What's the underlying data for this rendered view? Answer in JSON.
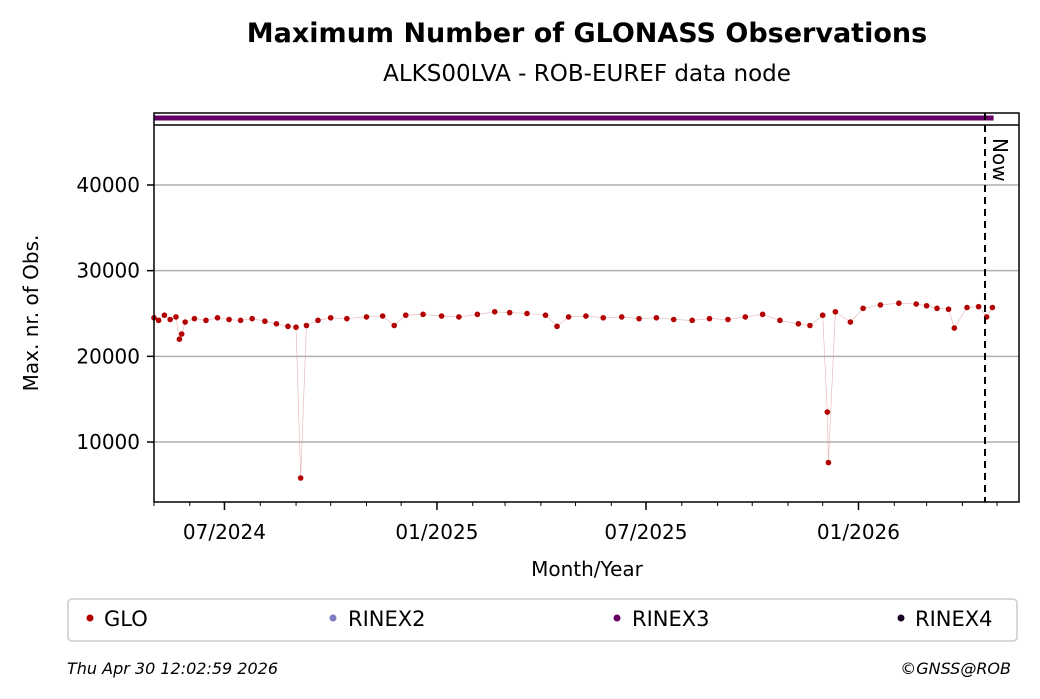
{
  "chart_data": {
    "type": "scatter",
    "title": "Maximum Number of GLONASS Observations",
    "subtitle": "ALKS00LVA - ROB-EUREF data node",
    "xlabel": "Month/Year",
    "ylabel": "Max. nr. of Obs.",
    "x_range": [
      "2024-05-01",
      "2026-05-20"
    ],
    "ylim": [
      3000,
      47000
    ],
    "x_ticks": [
      {
        "date": "2024-07-01",
        "label": "07/2024"
      },
      {
        "date": "2025-01-01",
        "label": "01/2025"
      },
      {
        "date": "2025-07-01",
        "label": "07/2025"
      },
      {
        "date": "2026-01-01",
        "label": "01/2026"
      }
    ],
    "y_ticks": [
      10000,
      20000,
      30000,
      40000
    ],
    "grid": "horizontal",
    "now_marker": {
      "date": "2026-04-30",
      "label": "Now"
    },
    "series": [
      {
        "name": "GLO",
        "color": "#b30000",
        "role": "observations",
        "points": [
          [
            "2024-05-01",
            24500
          ],
          [
            "2024-05-05",
            24200
          ],
          [
            "2024-05-10",
            24800
          ],
          [
            "2024-05-15",
            24300
          ],
          [
            "2024-05-20",
            24600
          ],
          [
            "2024-05-23",
            22000
          ],
          [
            "2024-05-25",
            22600
          ],
          [
            "2024-05-28",
            24000
          ],
          [
            "2024-06-05",
            24400
          ],
          [
            "2024-06-15",
            24200
          ],
          [
            "2024-06-25",
            24500
          ],
          [
            "2024-07-05",
            24300
          ],
          [
            "2024-07-15",
            24200
          ],
          [
            "2024-07-25",
            24400
          ],
          [
            "2024-08-05",
            24100
          ],
          [
            "2024-08-15",
            23800
          ],
          [
            "2024-08-25",
            23500
          ],
          [
            "2024-09-01",
            23400
          ],
          [
            "2024-09-05",
            5800
          ],
          [
            "2024-09-10",
            23600
          ],
          [
            "2024-09-20",
            24200
          ],
          [
            "2024-10-01",
            24500
          ],
          [
            "2024-10-15",
            24400
          ],
          [
            "2024-11-01",
            24600
          ],
          [
            "2024-11-15",
            24700
          ],
          [
            "2024-11-25",
            23600
          ],
          [
            "2024-12-05",
            24800
          ],
          [
            "2024-12-20",
            24900
          ],
          [
            "2025-01-05",
            24700
          ],
          [
            "2025-01-20",
            24600
          ],
          [
            "2025-02-05",
            24900
          ],
          [
            "2025-02-20",
            25200
          ],
          [
            "2025-03-05",
            25100
          ],
          [
            "2025-03-20",
            25000
          ],
          [
            "2025-04-05",
            24800
          ],
          [
            "2025-04-15",
            23500
          ],
          [
            "2025-04-25",
            24600
          ],
          [
            "2025-05-10",
            24700
          ],
          [
            "2025-05-25",
            24500
          ],
          [
            "2025-06-10",
            24600
          ],
          [
            "2025-06-25",
            24400
          ],
          [
            "2025-07-10",
            24500
          ],
          [
            "2025-07-25",
            24300
          ],
          [
            "2025-08-10",
            24200
          ],
          [
            "2025-08-25",
            24400
          ],
          [
            "2025-09-10",
            24300
          ],
          [
            "2025-09-25",
            24600
          ],
          [
            "2025-10-10",
            24900
          ],
          [
            "2025-10-25",
            24200
          ],
          [
            "2025-11-10",
            23800
          ],
          [
            "2025-11-20",
            23600
          ],
          [
            "2025-12-01",
            24800
          ],
          [
            "2025-12-05",
            13500
          ],
          [
            "2025-12-06",
            7600
          ],
          [
            "2025-12-12",
            25200
          ],
          [
            "2025-12-25",
            24000
          ],
          [
            "2026-01-05",
            25600
          ],
          [
            "2026-01-20",
            26000
          ],
          [
            "2026-02-05",
            26200
          ],
          [
            "2026-02-20",
            26100
          ],
          [
            "2026-03-01",
            25900
          ],
          [
            "2026-03-10",
            25600
          ],
          [
            "2026-03-20",
            25500
          ],
          [
            "2026-03-25",
            23300
          ],
          [
            "2026-04-05",
            25700
          ],
          [
            "2026-04-15",
            25800
          ],
          [
            "2026-04-22",
            24600
          ],
          [
            "2026-04-27",
            25700
          ]
        ]
      },
      {
        "name": "RINEX2",
        "color": "#7b7bbf",
        "role": "legend-only"
      },
      {
        "name": "RINEX3",
        "color": "#660066",
        "role": "availability-strip",
        "range": [
          "2024-05-01",
          "2026-04-28"
        ]
      },
      {
        "name": "RINEX4",
        "color": "#1a0022",
        "role": "legend-only"
      }
    ]
  },
  "footer": {
    "timestamp": "Thu Apr 30 12:02:59 2026",
    "copyright": "©GNSS@ROB"
  }
}
